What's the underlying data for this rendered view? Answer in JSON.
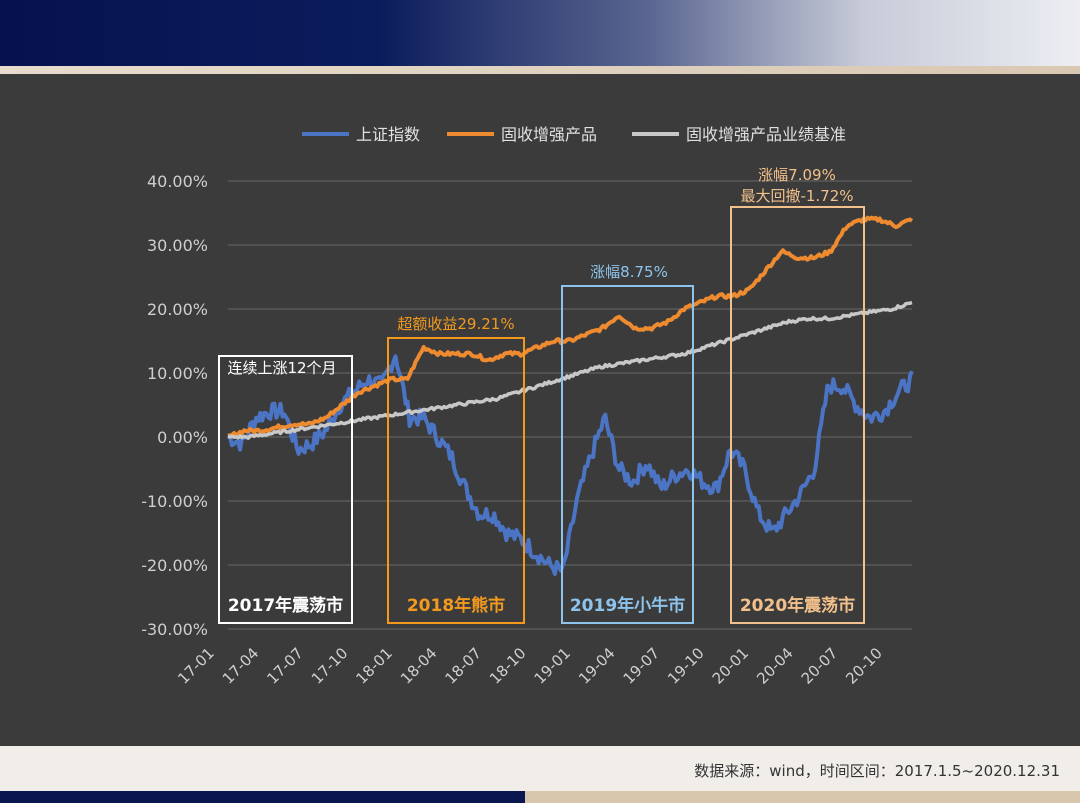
{
  "source_note": "数据来源：wind，时间区间：2017.1.5~2020.12.31",
  "chart_data": {
    "type": "line",
    "ylim": [
      -30,
      40
    ],
    "ytick_labels": [
      "40.00%",
      "30.00%",
      "20.00%",
      "10.00%",
      "0.00%",
      "-10.00%",
      "-20.00%",
      "-30.00%"
    ],
    "ytick_values": [
      40,
      30,
      20,
      10,
      0,
      -10,
      -20,
      -30
    ],
    "xtick_labels": [
      "17-01",
      "17-04",
      "17-07",
      "17-10",
      "18-01",
      "18-04",
      "18-07",
      "18-10",
      "19-01",
      "19-04",
      "19-07",
      "19-10",
      "20-01",
      "20-04",
      "20-07",
      "20-10"
    ],
    "grid": true,
    "legend_position": "top",
    "series": [
      {
        "name": "上证指数",
        "color": "#4b74c4",
        "values": [
          0,
          -1,
          3,
          4,
          4,
          -2,
          -1,
          1,
          5,
          7,
          9,
          8,
          13,
          3,
          3,
          0,
          -3,
          -8,
          -12,
          -12,
          -15,
          -16,
          -18,
          -20,
          -21,
          -10,
          -3,
          3,
          -5,
          -7,
          -4,
          -8,
          -6,
          -5,
          -7,
          -8,
          -2,
          -5,
          -12,
          -15,
          -12,
          -9,
          -5,
          8,
          8,
          5,
          3,
          4,
          7,
          9
        ]
      },
      {
        "name": "固收增强产品",
        "color": "#ee8a2f",
        "values": [
          0,
          1,
          1,
          1.5,
          2,
          2,
          3,
          5,
          7,
          8,
          9,
          9,
          14,
          13,
          13,
          13,
          12,
          13,
          13,
          14,
          15,
          15,
          16,
          17,
          19,
          17,
          17,
          18,
          20,
          21,
          22,
          22,
          23,
          26,
          29,
          28,
          28,
          29,
          33,
          34,
          34,
          33,
          34
        ]
      },
      {
        "name": "固收增强产品业绩基准",
        "color": "#c8c8c8",
        "values": [
          0,
          0,
          0.5,
          1,
          1.5,
          2,
          2.5,
          3,
          3.5,
          4,
          4.5,
          5,
          5.5,
          6,
          7,
          8,
          9,
          10,
          11,
          11.5,
          12,
          12.5,
          13,
          14,
          15,
          16,
          17,
          18,
          18.5,
          18.5,
          19,
          19.5,
          20,
          21
        ]
      }
    ],
    "annotations": [
      {
        "label": "2017年震荡市",
        "color": "#ffffff",
        "note": "连续上涨12个月"
      },
      {
        "label": "2018年熊市",
        "color": "#f39a1e",
        "note": "超额收益29.21%"
      },
      {
        "label": "2019年小牛市",
        "color": "#8ec4ec",
        "note": "涨幅8.75%"
      },
      {
        "label": "2020年震荡市",
        "color": "#f2c08c",
        "note": "涨幅7.09%",
        "note2": "最大回撤-1.72%"
      }
    ]
  }
}
